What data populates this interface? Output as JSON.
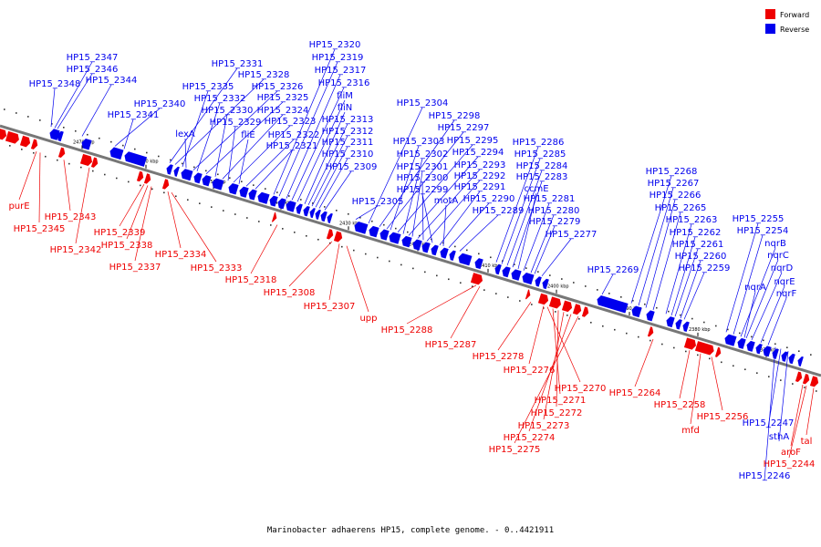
{
  "legend": [
    {
      "label": "Forward",
      "color": "#ee0000"
    },
    {
      "label": "Reverse",
      "color": "#0000ee"
    }
  ],
  "caption": "Marinobacter adhaerens HP15, complete genome. - 0..4421911",
  "axis_ticks": [
    "2470 kbp",
    "2460 kbp",
    "2450 kbp",
    "2440 kbp",
    "2430 kbp",
    "2420 kbp",
    "2410 kbp",
    "2400 kbp",
    "2390 kbp",
    "2380 kbp",
    "2370 kbp"
  ],
  "reverse_labels": [
    "HP15_2347",
    "HP15_2346",
    "HP15_2348",
    "HP15_2344",
    "HP15_2340",
    "HP15_2341",
    "HP15_2331",
    "HP15_2328",
    "HP15_2335",
    "HP15_2326",
    "HP15_2332",
    "HP15_2325",
    "lexA",
    "HP15_2330",
    "HP15_2324",
    "HP15_2329",
    "HP15_2323",
    "fliE",
    "HP15_2322",
    "HP15_2321",
    "HP15_2320",
    "HP15_2319",
    "HP15_2317",
    "HP15_2316",
    "fliM",
    "fliN",
    "HP15_2313",
    "HP15_2312",
    "HP15_2311",
    "HP15_2310",
    "HP15_2309",
    "HP15_2305",
    "HP15_2304",
    "HP15_2298",
    "HP15_2297",
    "HP15_2303",
    "HP15_2295",
    "HP15_2302",
    "HP15_2294",
    "HP15_2301",
    "HP15_2293",
    "HP15_2300",
    "HP15_2292",
    "HP15_2299",
    "HP15_2291",
    "motA",
    "HP15_2290",
    "HP15_2289",
    "HP15_2286",
    "HP15_2285",
    "HP15_2284",
    "HP15_2283",
    "ccmE",
    "HP15_2281",
    "HP15_2280",
    "HP15_2279",
    "HP15_2277",
    "HP15_2269",
    "HP15_2268",
    "HP15_2267",
    "HP15_2266",
    "HP15_2265",
    "HP15_2263",
    "HP15_2262",
    "HP15_2261",
    "HP15_2260",
    "HP15_2259",
    "HP15_2255",
    "HP15_2254",
    "nqrB",
    "nqrC",
    "nqrD",
    "nqrA",
    "nqrE",
    "nqrF",
    "HP15_2247",
    "sthA",
    "HP15_2246"
  ],
  "forward_labels": [
    "purE",
    "HP15_2345",
    "HP15_2343",
    "HP15_2342",
    "HP15_2339",
    "HP15_2338",
    "HP15_2337",
    "HP15_2334",
    "HP15_2333",
    "HP15_2318",
    "HP15_2308",
    "HP15_2307",
    "upp",
    "HP15_2288",
    "HP15_2287",
    "HP15_2278",
    "HP15_2276",
    "HP15_2270",
    "HP15_2271",
    "HP15_2272",
    "HP15_2273",
    "HP15_2274",
    "HP15_2275",
    "HP15_2264",
    "HP15_2258",
    "mfd",
    "HP15_2256",
    "aroF",
    "HP15_2244",
    "tal"
  ]
}
